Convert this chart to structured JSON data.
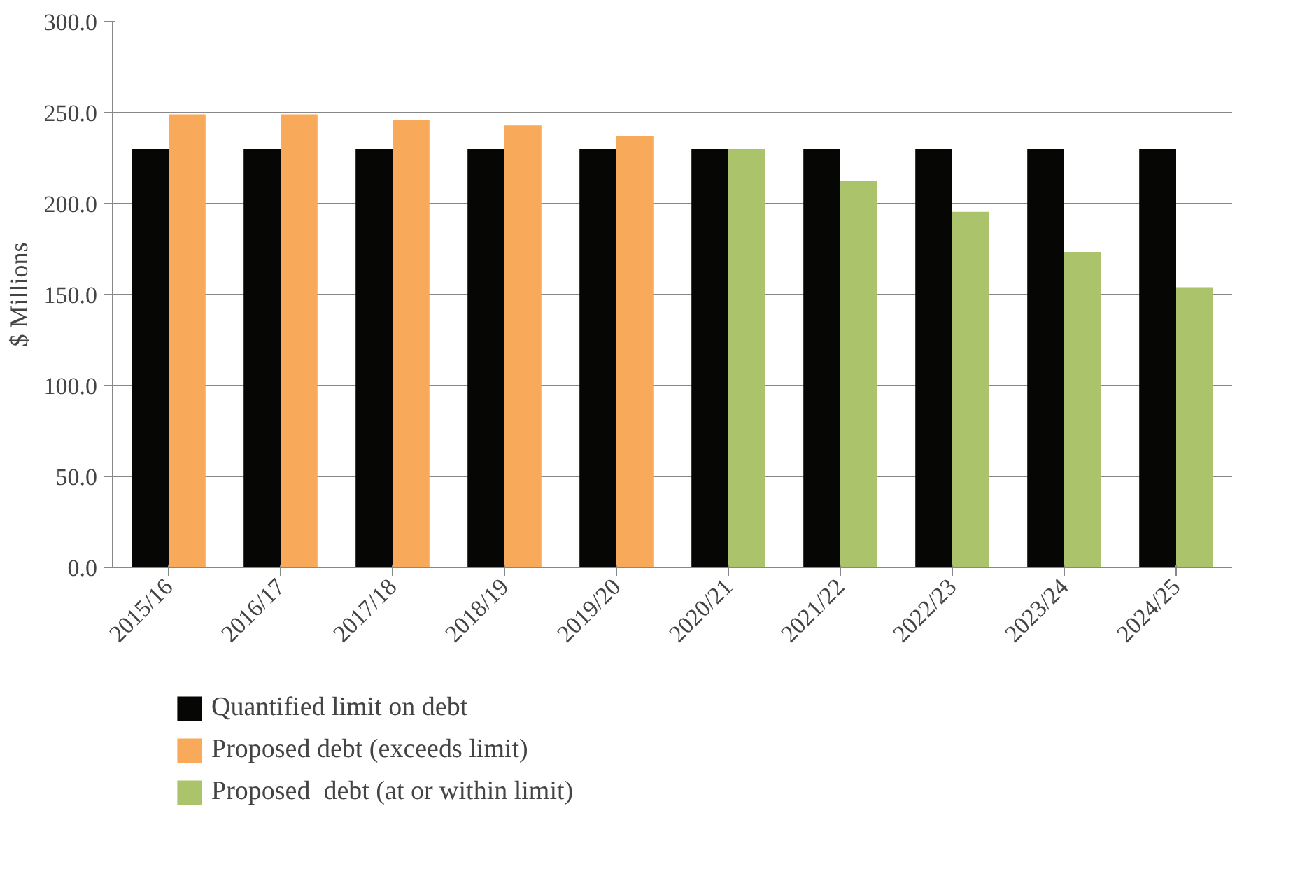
{
  "chart_data": {
    "type": "bar",
    "ylabel": "$ Millions",
    "categories": [
      "2015/16",
      "2016/17",
      "2017/18",
      "2018/19",
      "2019/20",
      "2020/21",
      "2021/22",
      "2022/23",
      "2023/24",
      "2024/25"
    ],
    "series": [
      {
        "name": "Quantified limit on debt",
        "color": "#060604",
        "values": [
          230,
          230,
          230,
          230,
          230,
          230,
          230,
          230,
          230,
          230
        ]
      },
      {
        "name": "Proposed debt (exceeds limit)",
        "color": "#f8a95a",
        "values": [
          249,
          249,
          246,
          243,
          237,
          null,
          null,
          null,
          null,
          null
        ]
      },
      {
        "name": "Proposed  debt (at or within limit)",
        "color": "#abc46c",
        "values": [
          null,
          null,
          null,
          null,
          null,
          230,
          212.5,
          195.5,
          173.5,
          154
        ]
      }
    ],
    "ylim": [
      0,
      300
    ],
    "yticks": [
      {
        "value": 0,
        "label": "0.0"
      },
      {
        "value": 50,
        "label": "50.0"
      },
      {
        "value": 100,
        "label": "100.0"
      },
      {
        "value": 150,
        "label": "150.0"
      },
      {
        "value": 200,
        "label": "200.0"
      },
      {
        "value": 250,
        "label": "250.0"
      },
      {
        "value": 300,
        "label": "300.0"
      }
    ],
    "grid": "y",
    "legend": "bottom"
  }
}
